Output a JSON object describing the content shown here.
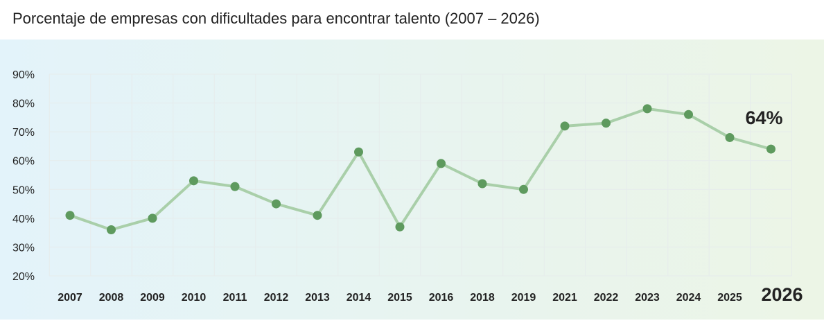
{
  "chart_data": {
    "type": "line",
    "title": "Porcentaje de empresas con dificultades para encontrar talento (2007 – 2026)",
    "xlabel": "",
    "ylabel": "",
    "categories": [
      "2007",
      "2008",
      "2009",
      "2010",
      "2011",
      "2012",
      "2013",
      "2014",
      "2015",
      "2016",
      "2018",
      "2019",
      "2021",
      "2022",
      "2023",
      "2024",
      "2025",
      "2026"
    ],
    "series": [
      {
        "values": [
          41,
          36,
          40,
          53,
          51,
          45,
          41,
          63,
          37,
          59,
          52,
          50,
          72,
          73,
          78,
          76,
          68,
          64
        ]
      }
    ],
    "ylim": [
      20,
      90
    ],
    "yticks": [
      20,
      30,
      40,
      50,
      60,
      70,
      80,
      90
    ],
    "ytick_labels": [
      "20%",
      "30%",
      "40%",
      "50%",
      "60%",
      "70%",
      "80%",
      "90%"
    ],
    "highlight_label": "64%",
    "highlight_category": "2026",
    "grid": true,
    "legend": "none",
    "colors": {
      "line": "#a9cfa9",
      "marker": "#5e9a5e",
      "background_start": "#e3f3fa",
      "background_end": "#ecf5e6",
      "grid": "#e6ecec",
      "text": "#222222"
    }
  }
}
